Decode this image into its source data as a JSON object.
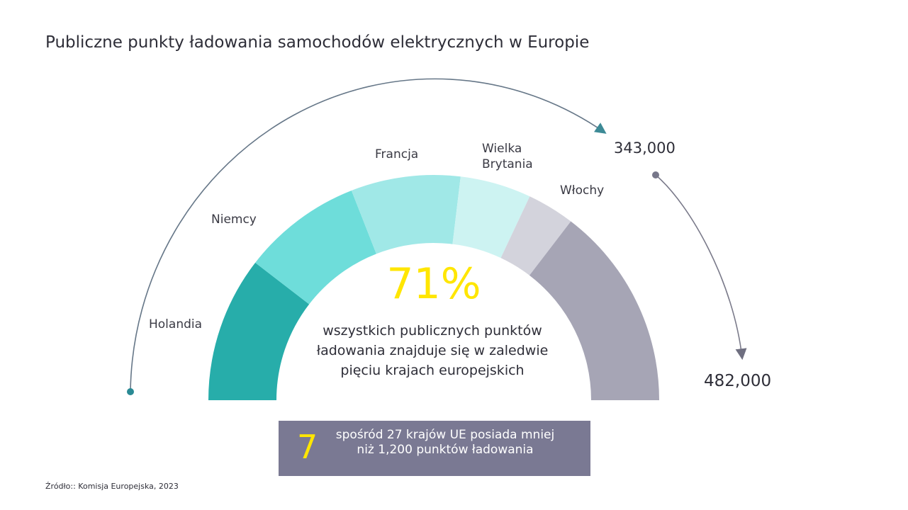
{
  "title": "Publiczne punkty ładowania samochodów elektrycznych w Europie",
  "chart_data": {
    "type": "pie",
    "subtype": "semi-donut",
    "title": "Publiczne punkty ładowania samochodów elektrycznych w Europie",
    "categories": [
      "Holandia",
      "Niemcy",
      "Francja",
      "Wielka Brytania",
      "Włochy",
      ""
    ],
    "category_labels": [
      "Holandia",
      "Niemcy",
      "Francja",
      "Wielka\nBrytania",
      "Włochy"
    ],
    "values": [
      20.9,
      17.2,
      15.7,
      10.2,
      6.8,
      29.2
    ],
    "colors": [
      "#27adaa",
      "#6eddda",
      "#a0e8e7",
      "#cdf3f2",
      "#d3d3dc",
      "#a6a5b5"
    ],
    "center_value": "71%",
    "center_text": "wszystkich publicznych punktów ładowania znajduje się w zaledwie pięciu krajach europejskich",
    "annotations": {
      "top_five_total": "343,000",
      "total": "482,000"
    }
  },
  "box": {
    "number": "7",
    "text": "spośród 27 krajów UE posiada mniej niż 1,200 punktów ładowania"
  },
  "source": "Źródło:: Komisja Europejska, 2023",
  "colors": {
    "accent_yellow": "#ffe600",
    "box": "#7a7993",
    "arrow": "#667788"
  }
}
